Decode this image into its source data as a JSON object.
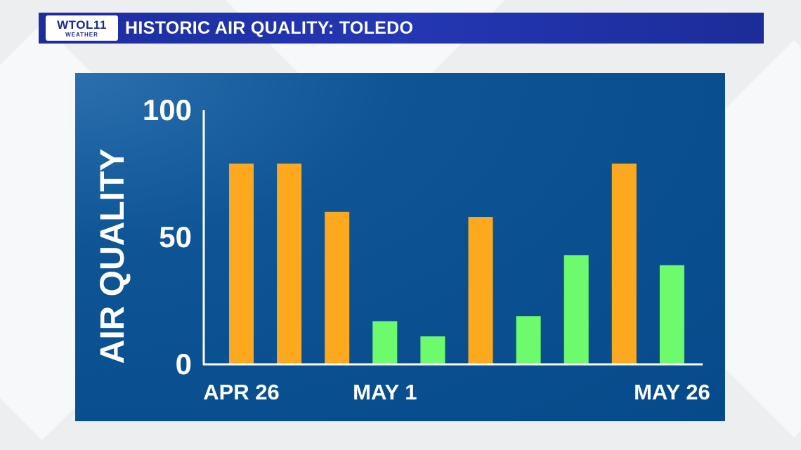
{
  "header": {
    "logo_main": "WTOL11",
    "logo_sub": "WEATHER",
    "title": "HISTORIC AIR QUALITY: TOLEDO"
  },
  "colors": {
    "header_bar": "#2133ac",
    "panel": "#0a4f8f",
    "bar_orange": "#fca91f",
    "bar_green": "#6dfa6d",
    "text": "#ffffff"
  },
  "chart_data": {
    "type": "bar",
    "ylabel": "AIR QUALITY",
    "ylim": [
      0,
      100
    ],
    "yticks": [
      0,
      50,
      100
    ],
    "grid": false,
    "x_tick_labels": [
      {
        "index": 0,
        "label": "APR 26"
      },
      {
        "index": 3,
        "label": "MAY 1"
      },
      {
        "index": 9,
        "label": "MAY 26"
      }
    ],
    "values": [
      79,
      79,
      60,
      17,
      11,
      58,
      19,
      43,
      79,
      39
    ],
    "bar_colors": [
      "orange",
      "orange",
      "orange",
      "green",
      "green",
      "orange",
      "green",
      "green",
      "orange",
      "green"
    ]
  }
}
